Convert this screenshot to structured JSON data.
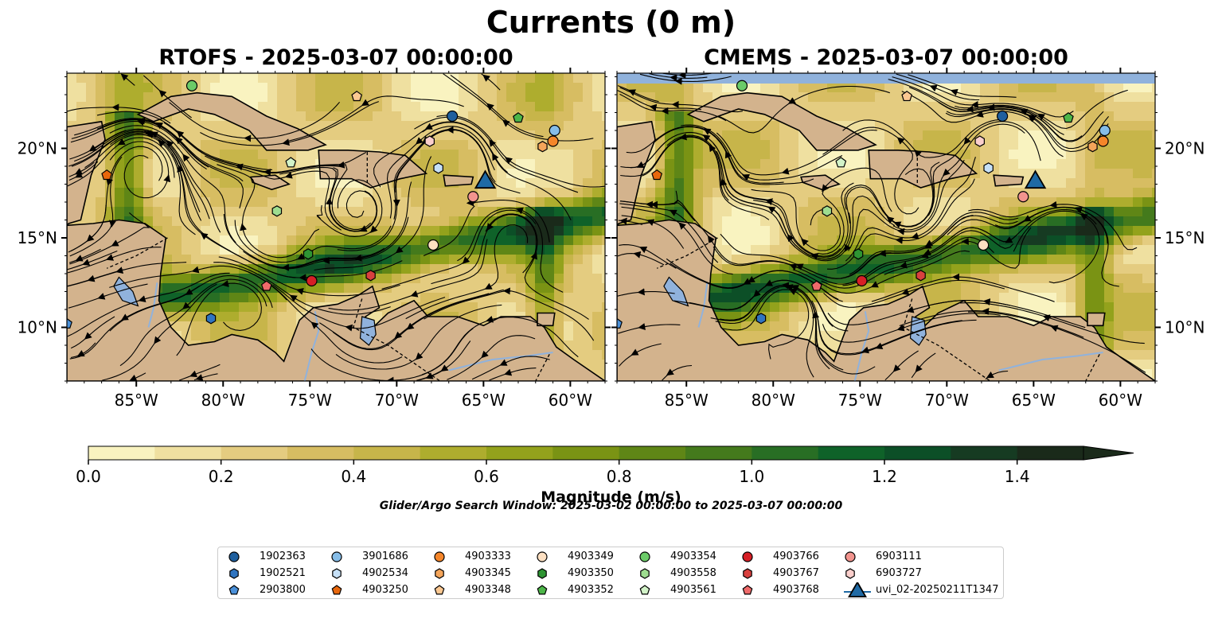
{
  "figure": {
    "title": "Currents (0 m)",
    "search_window": "Glider/Argo Search Window: 2025-03-02 00:00:00 to 2025-03-07 00:00:00"
  },
  "chart_data": [
    {
      "type": "heatmap",
      "title": "RTOFS - 2025-03-07 00:00:00",
      "xlim": [
        -89.0,
        -58.0
      ],
      "ylim": [
        7.0,
        24.2
      ],
      "x_ticks": [
        "85°W",
        "80°W",
        "75°W",
        "70°W",
        "65°W",
        "60°W"
      ],
      "x_tick_values": [
        -85,
        -80,
        -75,
        -70,
        -65,
        -60
      ],
      "y_ticks": [
        "10°N",
        "15°N",
        "20°N"
      ],
      "y_tick_values": [
        10,
        15,
        20
      ],
      "y_ticks_side": "left",
      "colorbar_label": "Magnitude (m/s)",
      "overlay": "streamlines"
    },
    {
      "type": "heatmap",
      "title": "CMEMS - 2025-03-07 00:00:00",
      "xlim": [
        -89.0,
        -58.0
      ],
      "ylim": [
        7.0,
        24.2
      ],
      "x_ticks": [
        "85°W",
        "80°W",
        "75°W",
        "70°W",
        "65°W",
        "60°W"
      ],
      "x_tick_values": [
        -85,
        -80,
        -75,
        -70,
        -65,
        -60
      ],
      "y_ticks": [
        "10°N",
        "15°N",
        "20°N"
      ],
      "y_tick_values": [
        10,
        15,
        20
      ],
      "y_ticks_side": "right",
      "colorbar_label": "Magnitude (m/s)",
      "overlay": "streamlines"
    }
  ],
  "colorbar": {
    "label": "Magnitude (m/s)",
    "range": [
      0.0,
      1.5
    ],
    "extend": "max",
    "levels": [
      0.0,
      0.1,
      0.2,
      0.3,
      0.4,
      0.5,
      0.6,
      0.7,
      0.8,
      0.9,
      1.0,
      1.1,
      1.2,
      1.3,
      1.4,
      1.5
    ],
    "colors": [
      "#f9f3c0",
      "#efe0a0",
      "#e4cc80",
      "#d7bd62",
      "#c7b54a",
      "#aead2e",
      "#93a21c",
      "#7a9314",
      "#5f8616",
      "#447a1c",
      "#286e24",
      "#0f6229",
      "#0c4f27",
      "#163b22",
      "#1a2a1a"
    ],
    "tick_labels": [
      "0.0",
      "0.2",
      "0.4",
      "0.6",
      "0.8",
      "1.0",
      "1.2",
      "1.4"
    ],
    "tick_values": [
      0.0,
      0.2,
      0.4,
      0.6,
      0.8,
      1.0,
      1.2,
      1.4
    ]
  },
  "map_colors": {
    "land": "#d3b38d",
    "water_feature": "#90b2dc",
    "coast": "#000000"
  },
  "platforms": [
    {
      "id": "1902363",
      "marker": "circle",
      "color": "#1f5f9e",
      "lon": -66.8,
      "lat": 21.8
    },
    {
      "id": "1902521",
      "marker": "hexagon",
      "color": "#2f74c0",
      "lon": -80.7,
      "lat": 10.5
    },
    {
      "id": "2903800",
      "marker": "pentagon",
      "color": "#4a90d9",
      "lon": -89.0,
      "lat": 10.2
    },
    {
      "id": "3901686",
      "marker": "circle",
      "color": "#86bde8",
      "lon": -60.9,
      "lat": 21.0
    },
    {
      "id": "4902534",
      "marker": "hexagon",
      "color": "#c6e0f7",
      "lon": -67.6,
      "lat": 18.9
    },
    {
      "id": "4903250",
      "marker": "pentagon",
      "color": "#e8670c",
      "lon": -86.7,
      "lat": 18.5
    },
    {
      "id": "4903333",
      "marker": "circle",
      "color": "#f5862a",
      "lon": -61.0,
      "lat": 20.4
    },
    {
      "id": "4903345",
      "marker": "hexagon",
      "color": "#f5a55a",
      "lon": -61.6,
      "lat": 20.1
    },
    {
      "id": "4903348",
      "marker": "pentagon",
      "color": "#fbc892",
      "lon": -72.3,
      "lat": 22.9
    },
    {
      "id": "4903349",
      "marker": "circle",
      "color": "#fde0c2",
      "lon": -67.9,
      "lat": 14.6
    },
    {
      "id": "4903350",
      "marker": "hexagon",
      "color": "#2e9433",
      "lon": -75.1,
      "lat": 14.1
    },
    {
      "id": "4903352",
      "marker": "pentagon",
      "color": "#4db649",
      "lon": -63.0,
      "lat": 21.7
    },
    {
      "id": "4903354",
      "marker": "circle",
      "color": "#6bcb68",
      "lon": -81.8,
      "lat": 23.5
    },
    {
      "id": "4903558",
      "marker": "hexagon",
      "color": "#9edd90",
      "lon": -76.9,
      "lat": 16.5
    },
    {
      "id": "4903561",
      "marker": "pentagon",
      "color": "#d2f3c8",
      "lon": -76.1,
      "lat": 19.2
    },
    {
      "id": "4903766",
      "marker": "circle",
      "color": "#d61f26",
      "lon": -74.9,
      "lat": 12.6
    },
    {
      "id": "4903767",
      "marker": "hexagon",
      "color": "#d8403e",
      "lon": -71.5,
      "lat": 12.9
    },
    {
      "id": "4903768",
      "marker": "pentagon",
      "color": "#ef6a6a",
      "lon": -77.5,
      "lat": 12.3
    },
    {
      "id": "6903111",
      "marker": "circle",
      "color": "#f2948e",
      "lon": -65.6,
      "lat": 17.3
    },
    {
      "id": "6903727",
      "marker": "hexagon",
      "color": "#fbcfcc",
      "lon": -68.1,
      "lat": 20.4
    },
    {
      "id": "uvi_02-20250211T1347",
      "marker": "triangle",
      "color": "#1f6aa5",
      "lon": -64.9,
      "lat": 18.1
    }
  ]
}
